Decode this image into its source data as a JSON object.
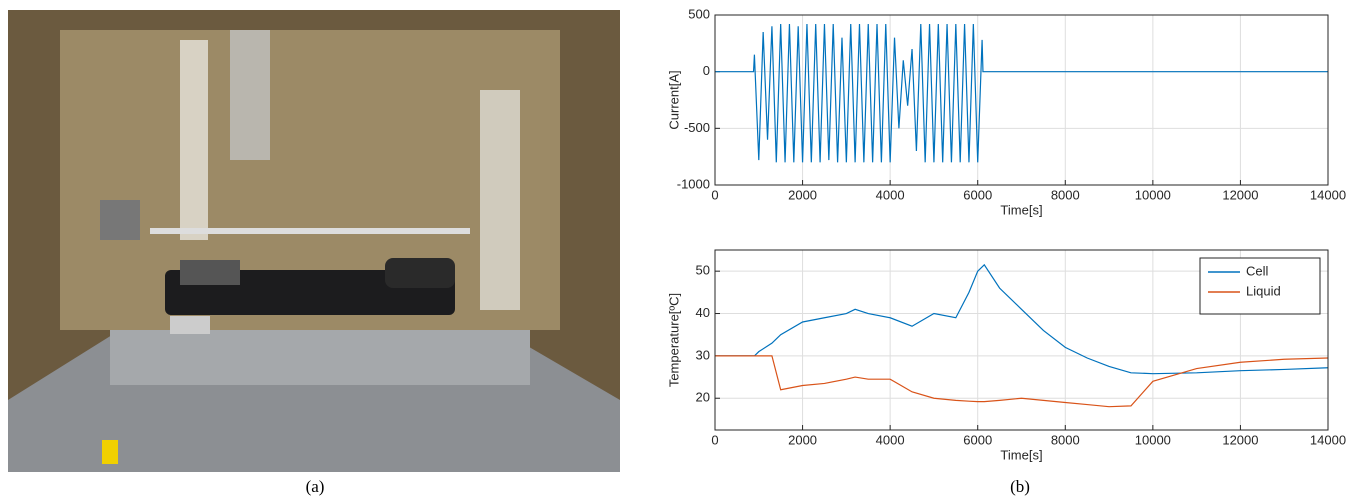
{
  "caption_a": "(a)",
  "caption_b": "(b)",
  "chart_data": [
    {
      "type": "line",
      "xlabel": "Time[s]",
      "ylabel": "Current[A]",
      "xlim": [
        0,
        14000
      ],
      "xticks": [
        0,
        2000,
        4000,
        6000,
        8000,
        10000,
        12000,
        14000
      ],
      "ylim": [
        -1000,
        500
      ],
      "yticks": [
        -1000,
        -500,
        0,
        500
      ],
      "grid": true,
      "x": [
        0,
        880,
        900,
        1000,
        1100,
        1200,
        1300,
        1400,
        1500,
        1600,
        1700,
        1800,
        1900,
        2000,
        2100,
        2200,
        2300,
        2400,
        2500,
        2600,
        2700,
        2800,
        2900,
        3000,
        3100,
        3200,
        3300,
        3400,
        3500,
        3600,
        3700,
        3800,
        3900,
        4000,
        4100,
        4200,
        4300,
        4400,
        4500,
        4600,
        4700,
        4800,
        4900,
        5000,
        5100,
        5200,
        5300,
        5400,
        5500,
        5600,
        5700,
        5800,
        5900,
        6000,
        6100,
        6120,
        14000
      ],
      "series": [
        {
          "color": "#0072bd",
          "values": [
            0,
            0,
            150,
            -780,
            350,
            -600,
            400,
            -800,
            420,
            -800,
            420,
            -800,
            400,
            -800,
            420,
            -800,
            420,
            -800,
            420,
            -780,
            420,
            -800,
            300,
            -800,
            420,
            -800,
            420,
            -800,
            420,
            -800,
            420,
            -800,
            420,
            -800,
            300,
            -500,
            100,
            -300,
            200,
            -700,
            420,
            -800,
            420,
            -800,
            420,
            -800,
            420,
            -800,
            420,
            -800,
            420,
            -800,
            420,
            -800,
            280,
            0,
            0
          ]
        }
      ]
    },
    {
      "type": "line",
      "xlabel": "Time[s]",
      "ylabel": "Temperature[ºC]",
      "xlim": [
        0,
        14000
      ],
      "xticks": [
        0,
        2000,
        4000,
        6000,
        8000,
        10000,
        12000,
        14000
      ],
      "ylim": [
        12.5,
        55
      ],
      "yticks": [
        20,
        30,
        40,
        50
      ],
      "grid": true,
      "legend": "top-right",
      "x": [
        0,
        900,
        1000,
        1300,
        1500,
        2000,
        2500,
        3000,
        3200,
        3500,
        4000,
        4500,
        5000,
        5500,
        5800,
        6000,
        6150,
        6500,
        7000,
        7500,
        8000,
        8500,
        9000,
        9500,
        10000,
        11000,
        12000,
        13000,
        14000
      ],
      "series": [
        {
          "name": "Cell",
          "color": "#0072bd",
          "values": [
            30,
            30,
            31,
            33,
            35,
            38,
            39,
            40,
            41,
            40,
            39,
            37,
            40,
            39,
            45,
            50,
            51.5,
            46,
            41,
            36,
            32,
            29.5,
            27.5,
            26,
            25.8,
            26,
            26.5,
            26.8,
            27.2
          ]
        },
        {
          "name": "Liquid",
          "color": "#d95319",
          "values": [
            30,
            30,
            30,
            30,
            22,
            23,
            23.5,
            24.5,
            25,
            24.5,
            24.5,
            21.5,
            20,
            19.5,
            19.3,
            19.2,
            19.2,
            19.5,
            20,
            19.5,
            19,
            18.5,
            18,
            18.2,
            24,
            27,
            28.5,
            29.2,
            29.5
          ]
        }
      ]
    }
  ]
}
